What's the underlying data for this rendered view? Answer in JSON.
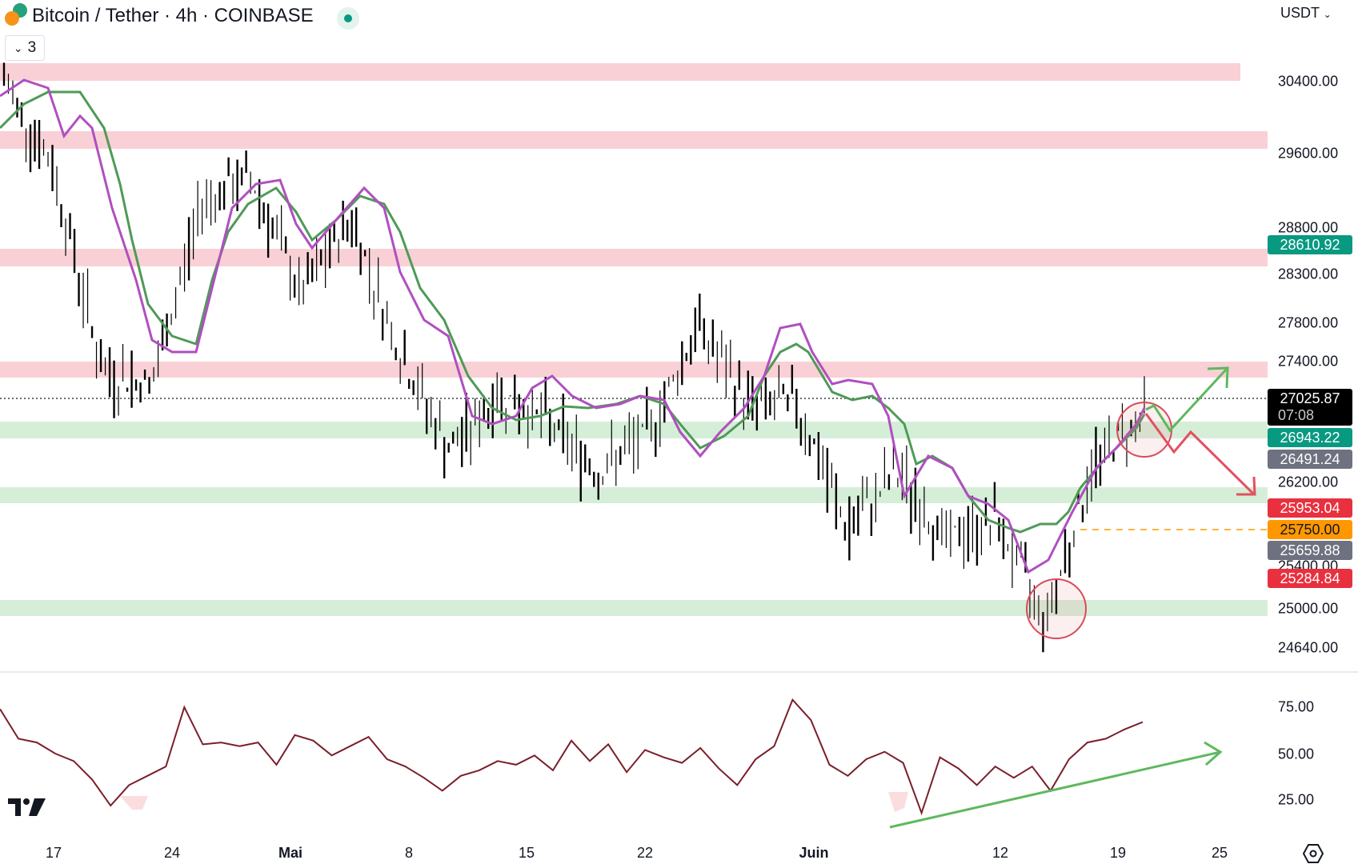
{
  "header": {
    "title": "Bitcoin / Tether · 4h · COINBASE",
    "live_status": "market-open",
    "collapse_count": "3",
    "currency": "USDT"
  },
  "price_axis": {
    "labels": [
      "30400.00",
      "29600.00",
      "28800.00",
      "28300.00",
      "27800.00",
      "27400.00",
      "26200.00",
      "25400.00",
      "25000.00",
      "24640.00"
    ],
    "tags": {
      "last_price": "27025.87",
      "countdown": "07:08",
      "tag_green": "26943.22",
      "tag_gray_1": "26491.24",
      "tag_red_1": "25953.04",
      "tag_orange": "25750.00",
      "tag_gray_2": "25659.88",
      "tag_red_2": "25284.84",
      "tag_teal": "28610.92"
    }
  },
  "rsi_axis": {
    "labels": [
      "75.00",
      "50.00",
      "25.00"
    ]
  },
  "time_axis": {
    "labels": [
      "17",
      "24",
      "Mai",
      "8",
      "15",
      "22",
      "Juin",
      "12",
      "19",
      "25"
    ]
  },
  "colors": {
    "resistance_zone": "#f8c9cf",
    "support_zone": "#cdeccf",
    "ema_fast": "#b04fc0",
    "ema_slow": "#4f9a57",
    "rsi_line": "#7a1f2b",
    "bull_arrow": "#5fb85f",
    "bear_arrow": "#e55060",
    "tag_green": "#089981",
    "tag_gray": "#6e7180",
    "tag_red": "#e8303f",
    "tag_orange": "#ff9800"
  },
  "chart_data": {
    "type": "candlestick",
    "title": "Bitcoin / Tether · 4h · COINBASE",
    "xlabel": "",
    "ylabel": "USDT",
    "ylim": [
      24500,
      30900
    ],
    "x_ticks": [
      "17",
      "24",
      "Mai",
      "8",
      "15",
      "22",
      "Juin",
      "12",
      "19",
      "25"
    ],
    "y_ticks": [
      30400,
      29600,
      28800,
      28300,
      27800,
      27400,
      26200,
      25400,
      25000,
      24640
    ],
    "last_price": 27025.87,
    "price_tags": [
      28610.92,
      26943.22,
      26491.24,
      25953.04,
      25750.0,
      25659.88,
      25284.84
    ],
    "approx_closes": [
      {
        "date": "Apr 14",
        "close": 30400
      },
      {
        "date": "Apr 17",
        "close": 29500
      },
      {
        "date": "Apr 21",
        "close": 27400
      },
      {
        "date": "Apr 24",
        "close": 27300
      },
      {
        "date": "Apr 26",
        "close": 29200
      },
      {
        "date": "Apr 28",
        "close": 29400
      },
      {
        "date": "May 1",
        "close": 28200
      },
      {
        "date": "May 6",
        "close": 29000
      },
      {
        "date": "May 9",
        "close": 27600
      },
      {
        "date": "May 12",
        "close": 26600
      },
      {
        "date": "May 15",
        "close": 27200
      },
      {
        "date": "May 19",
        "close": 26900
      },
      {
        "date": "May 24",
        "close": 26400
      },
      {
        "date": "May 27",
        "close": 26800
      },
      {
        "date": "May 29",
        "close": 27900
      },
      {
        "date": "Jun 1",
        "close": 27100
      },
      {
        "date": "Jun 4",
        "close": 27100
      },
      {
        "date": "Jun 6",
        "close": 25800
      },
      {
        "date": "Jun 8",
        "close": 26400
      },
      {
        "date": "Jun 10",
        "close": 25700
      },
      {
        "date": "Jun 14",
        "close": 25900
      },
      {
        "date": "Jun 15",
        "close": 24900
      },
      {
        "date": "Jun 17",
        "close": 26500
      },
      {
        "date": "Jun 20",
        "close": 27025.87
      }
    ],
    "resistance_zones": [
      [
        30400,
        30700
      ],
      [
        29500,
        29750
      ],
      [
        28500,
        28750
      ],
      [
        27250,
        27450
      ]
    ],
    "support_zones": [
      [
        26850,
        27050
      ],
      [
        25950,
        26150
      ],
      [
        24950,
        25150
      ]
    ],
    "indicators": [
      {
        "name": "EMA fast",
        "color": "purple"
      },
      {
        "name": "EMA slow",
        "color": "green"
      }
    ],
    "rsi": {
      "ylim": [
        0,
        100
      ],
      "y_ticks": [
        75,
        50,
        25
      ],
      "approx_values": [
        74,
        58,
        56,
        50,
        46,
        36,
        22,
        33,
        38,
        43,
        75,
        55,
        56,
        54,
        56,
        44,
        60,
        57,
        49,
        54,
        59,
        47,
        43,
        37,
        30,
        38,
        41,
        46,
        44,
        49,
        41,
        57,
        46,
        55,
        40,
        52,
        48,
        45,
        53,
        42,
        33,
        47,
        54,
        79,
        68,
        44,
        38,
        47,
        51,
        45,
        18,
        48,
        42,
        33,
        43,
        37,
        43,
        30,
        47,
        56,
        58,
        63,
        67
      ],
      "annotation": "rising trendline (bullish divergence)"
    },
    "annotations": [
      "circle at Jun 15 low near 25000 support",
      "circle at current price near 26943 support",
      "green arrow up toward 27400",
      "red zigzag arrow down toward 26200"
    ]
  }
}
